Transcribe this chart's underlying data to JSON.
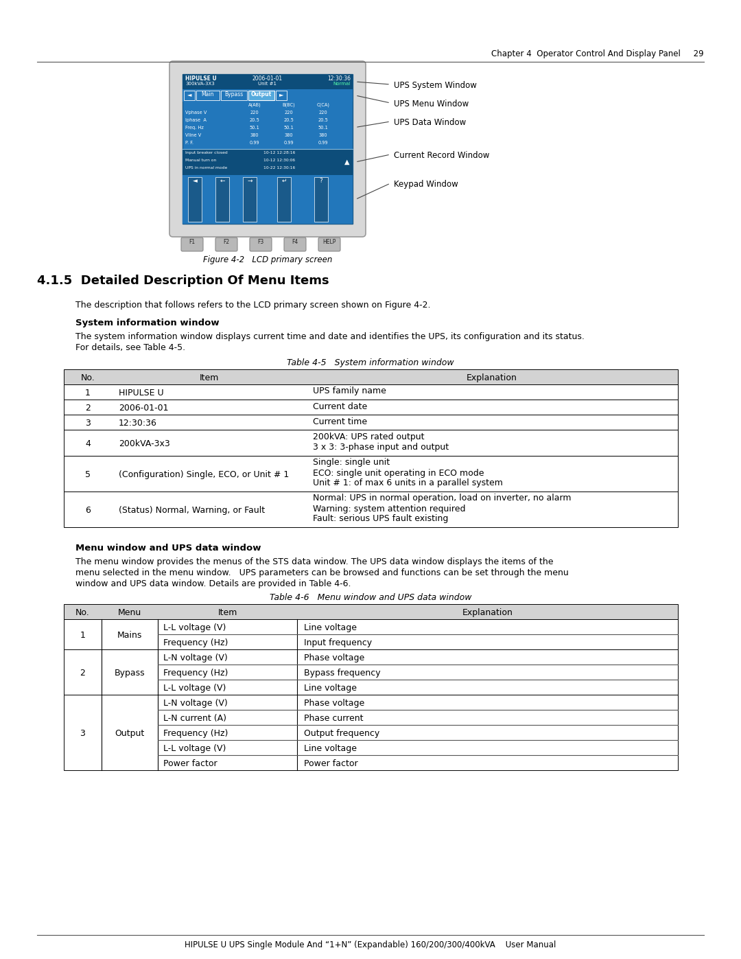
{
  "page_header": "Chapter 4  Operator Control And Display Panel     29",
  "footer_line": "HIPULSE U UPS Single Module And “1+N” (Expandable) 160/200/300/400kVA    User Manual",
  "section_title": "4.1.5  Detailed Description Of Menu Items",
  "intro_text": "The description that follows refers to the LCD primary screen shown on Figure 4-2.",
  "sys_info_header": "System information window",
  "sys_info_text_1": "The system information window displays current time and date and identifies the UPS, its configuration and its status.",
  "sys_info_text_2": "For details, see Table 4-5.",
  "table45_caption": "Table 4-5   System information window",
  "table45_headers": [
    "No.",
    "Item",
    "Explanation"
  ],
  "table45_rows": [
    [
      "1",
      "HIPULSE U",
      "UPS family name"
    ],
    [
      "2",
      "2006-01-01",
      "Current date"
    ],
    [
      "3",
      "12:30:36",
      "Current time"
    ],
    [
      "4",
      "200kVA-3x3",
      "200kVA: UPS rated output\n3 x 3: 3-phase input and output"
    ],
    [
      "5",
      "(Configuration) Single, ECO, or Unit # 1",
      "Single: single unit\nECO: single unit operating in ECO mode\nUnit # 1: of max 6 units in a parallel system"
    ],
    [
      "6",
      "(Status) Normal, Warning, or Fault",
      "Normal: UPS in normal operation, load on inverter, no alarm\nWarning: system attention required\nFault: serious UPS fault existing"
    ]
  ],
  "menu_header": "Menu window and UPS data window",
  "menu_text1": "The menu window provides the menus of the STS data window. The UPS data window displays the items of the",
  "menu_text2": "menu selected in the menu window.   UPS parameters can be browsed and functions can be set through the menu",
  "menu_text3": "window and UPS data window. Details are provided in Table 4-6.",
  "table46_caption": "Table 4-6   Menu window and UPS data window",
  "table46_headers": [
    "No.",
    "Menu",
    "Item",
    "Explanation"
  ],
  "figure_caption": "Figure 4-2   LCD primary screen",
  "lcd_labels": [
    "UPS System Window",
    "UPS Menu Window",
    "UPS Data Window",
    "Current Record Window",
    "Keypad Window"
  ],
  "bg_color": "#ffffff",
  "table_header_bg": "#d3d3d3",
  "lcd_bg": "#2277bb",
  "lcd_dark_bg": "#0d4d7a",
  "lcd_active_btn": "#aaddff",
  "lcd_gray_frame": "#c8c8c8"
}
